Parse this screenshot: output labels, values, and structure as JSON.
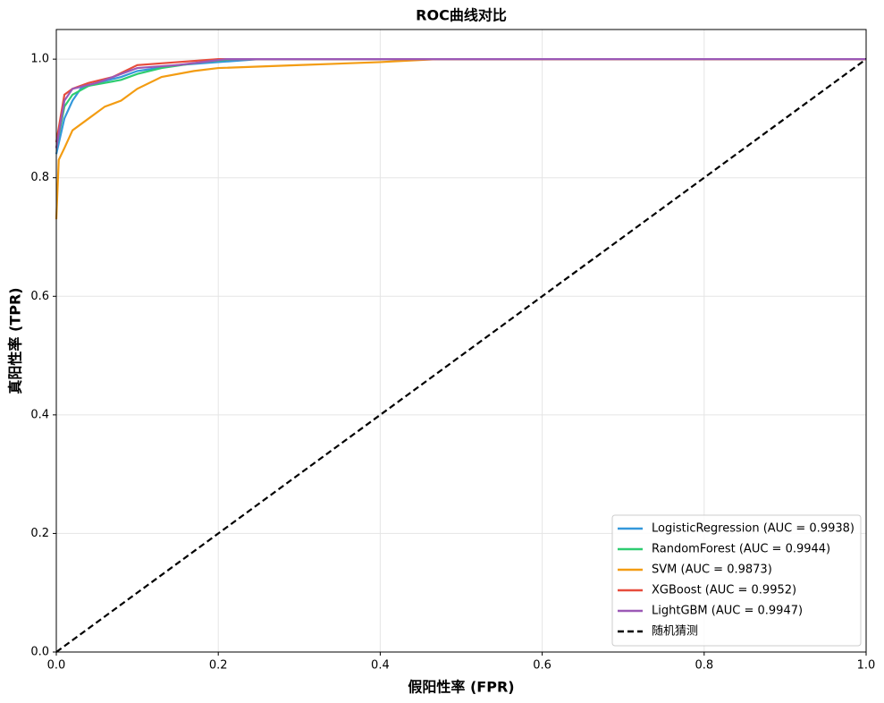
{
  "chart_data": {
    "type": "line",
    "title": "ROC曲线对比",
    "x_label": "假阳性率 (FPR)",
    "y_label": "真阳性率 (TPR)",
    "xlim": [
      0,
      1
    ],
    "ylim": [
      0,
      1.05
    ],
    "xticks": [
      {
        "value": 0,
        "label": "0.0"
      },
      0.2,
      0.4,
      0.6,
      0.8,
      {
        "value": 1,
        "label": "1.0"
      }
    ],
    "yticks": [
      {
        "value": 0,
        "label": "0.0"
      },
      0.2,
      0.4,
      0.6,
      0.8,
      {
        "value": 1,
        "label": "1.0"
      }
    ],
    "grid": true,
    "legend_position": "lower right",
    "series": [
      {
        "name": "LogisticRegression (AUC = 0.9938)",
        "color": "#3498db",
        "x": [
          0,
          0.005,
          0.01,
          0.02,
          0.03,
          0.05,
          0.08,
          0.1,
          0.15,
          0.2,
          0.25,
          1
        ],
        "values": [
          0.84,
          0.87,
          0.9,
          0.93,
          0.95,
          0.96,
          0.97,
          0.98,
          0.99,
          0.995,
          1,
          1
        ]
      },
      {
        "name": "RandomForest (AUC = 0.9944)",
        "color": "#2ecc71",
        "x": [
          0,
          0.01,
          0.02,
          0.04,
          0.08,
          0.1,
          0.13,
          0.18,
          0.22,
          1
        ],
        "values": [
          0.85,
          0.92,
          0.94,
          0.955,
          0.965,
          0.975,
          0.985,
          0.995,
          1,
          1
        ]
      },
      {
        "name": "SVM (AUC = 0.9873)",
        "color": "#f39c12",
        "x": [
          0,
          0.003,
          0.01,
          0.02,
          0.04,
          0.06,
          0.08,
          0.1,
          0.13,
          0.17,
          0.2,
          0.3,
          0.4,
          0.47,
          1
        ],
        "values": [
          0.73,
          0.83,
          0.85,
          0.88,
          0.9,
          0.92,
          0.93,
          0.95,
          0.97,
          0.98,
          0.985,
          0.99,
          0.995,
          1,
          1
        ]
      },
      {
        "name": "XGBoost (AUC = 0.9952)",
        "color": "#e74c3c",
        "x": [
          0,
          0.005,
          0.01,
          0.02,
          0.04,
          0.07,
          0.1,
          0.15,
          0.2,
          1
        ],
        "values": [
          0.86,
          0.9,
          0.94,
          0.95,
          0.96,
          0.97,
          0.99,
          0.995,
          1,
          1
        ]
      },
      {
        "name": "LightGBM (AUC = 0.9947)",
        "color": "#9b59b6",
        "x": [
          0,
          0.01,
          0.02,
          0.05,
          0.08,
          0.1,
          0.15,
          0.21,
          1
        ],
        "values": [
          0.85,
          0.93,
          0.95,
          0.96,
          0.975,
          0.985,
          0.99,
          1,
          1
        ]
      },
      {
        "name": "随机猜测",
        "color": "#000000",
        "dashed": true,
        "x": [
          0,
          1
        ],
        "values": [
          0,
          1
        ]
      }
    ]
  }
}
